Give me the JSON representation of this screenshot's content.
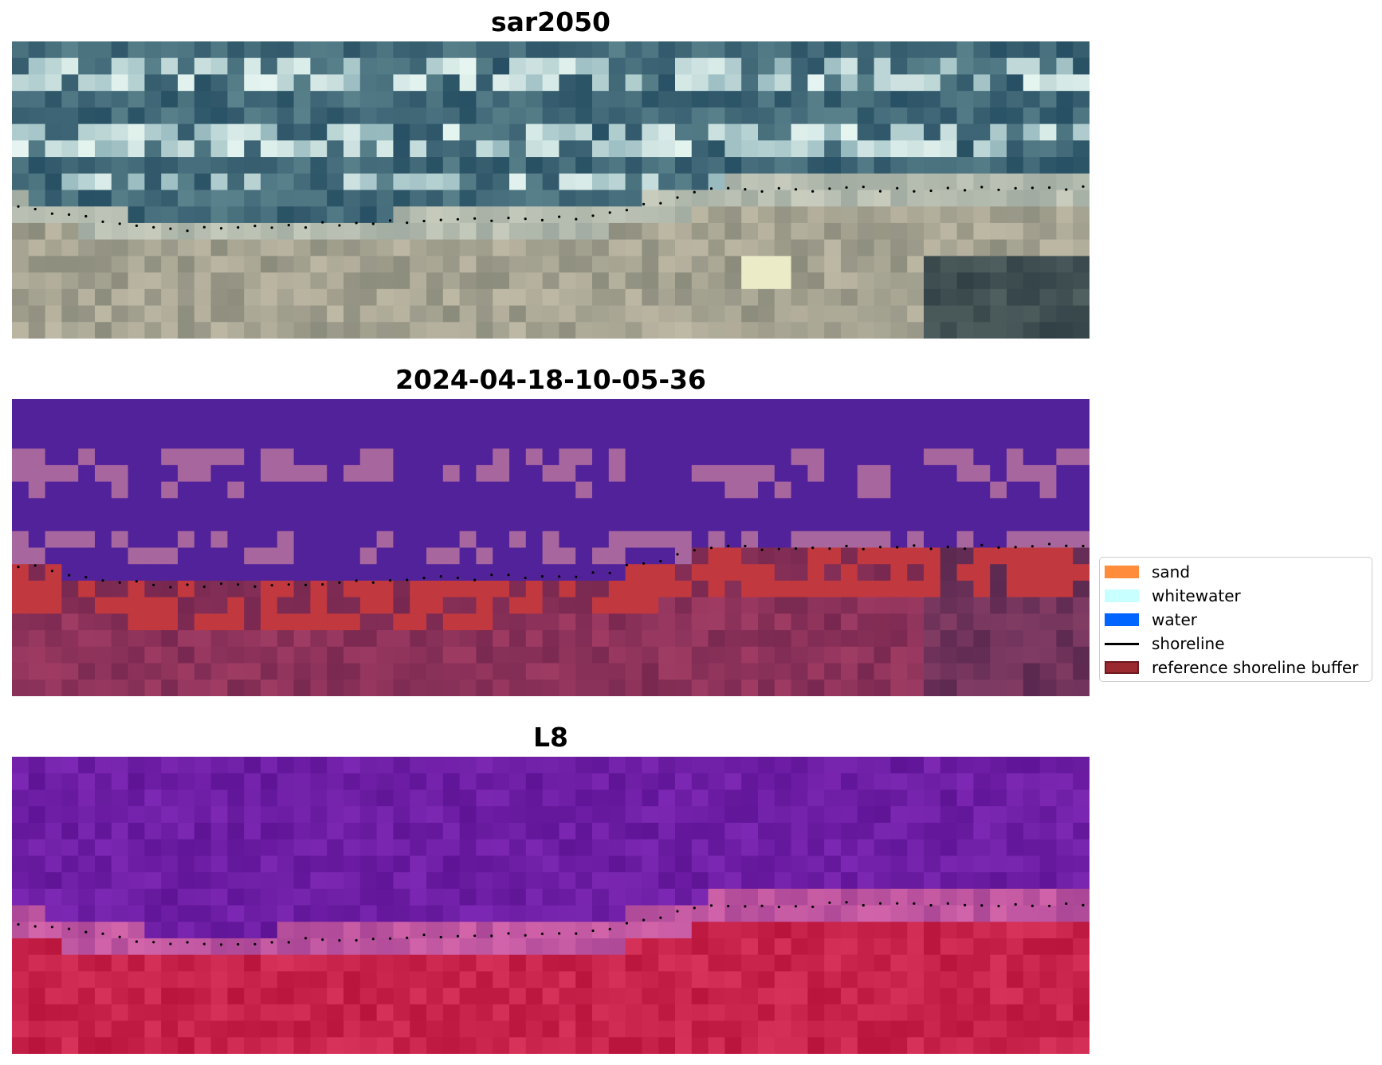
{
  "panels": [
    {
      "title": "sar2050",
      "kind": "rgb"
    },
    {
      "title": "2024-04-18-10-05-36",
      "kind": "classified"
    },
    {
      "title": "L8",
      "kind": "falsecolor"
    }
  ],
  "legend": {
    "items": [
      {
        "label": "sand",
        "type": "patch",
        "color": "#ff8c3b"
      },
      {
        "label": "whitewater",
        "type": "patch",
        "color": "#c8ffff"
      },
      {
        "label": "water",
        "type": "patch",
        "color": "#0064ff"
      },
      {
        "label": "shoreline",
        "type": "line",
        "color": "#000000"
      },
      {
        "label": "reference shoreline buffer",
        "type": "patch",
        "color": "#9b2a30",
        "edge": "#6e1a1e"
      }
    ]
  },
  "colors": {
    "water_class": "#52229a",
    "whitewater_class": "#a8669e",
    "buffer": "#c1383f",
    "shoreline": "#000000"
  }
}
